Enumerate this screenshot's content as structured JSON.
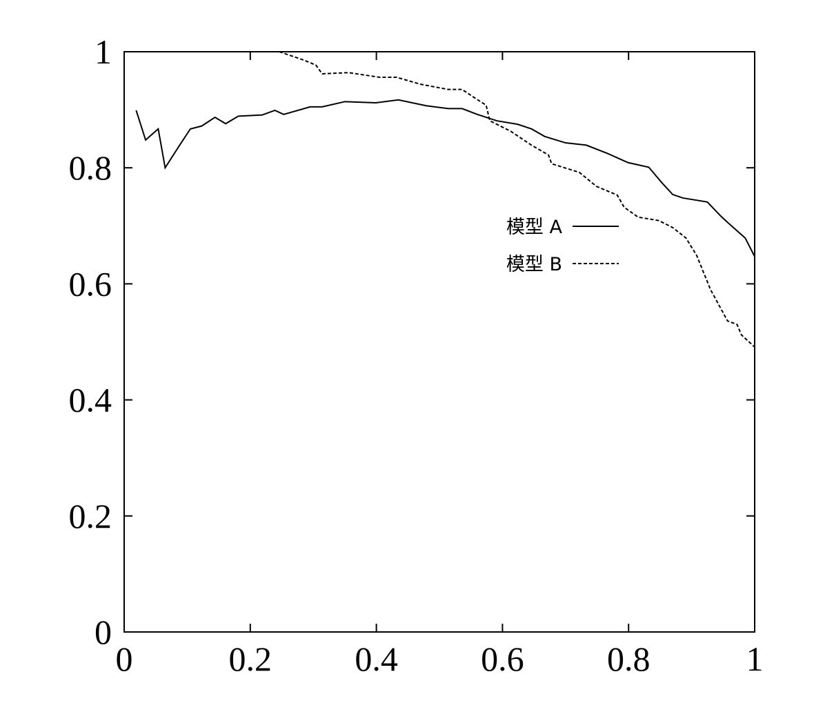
{
  "chart_data": {
    "type": "line",
    "xlim": [
      0,
      1
    ],
    "ylim": [
      0,
      1
    ],
    "xticks": [
      0,
      0.2,
      0.4,
      0.6,
      0.8,
      1
    ],
    "yticks": [
      0,
      0.2,
      0.4,
      0.6,
      0.8,
      1
    ],
    "series": [
      {
        "name": "模型 A",
        "color": "#000000",
        "line_style": "solid",
        "x": [
          0.019,
          0.034,
          0.054,
          0.065,
          0.088,
          0.105,
          0.123,
          0.144,
          0.161,
          0.181,
          0.219,
          0.239,
          0.253,
          0.295,
          0.314,
          0.35,
          0.399,
          0.435,
          0.479,
          0.514,
          0.536,
          0.56,
          0.591,
          0.624,
          0.646,
          0.667,
          0.7,
          0.733,
          0.766,
          0.799,
          0.832,
          0.853,
          0.87,
          0.886,
          0.925,
          0.946,
          0.963,
          0.985,
          1.0
        ],
        "values": [
          0.899,
          0.848,
          0.867,
          0.8,
          0.839,
          0.867,
          0.872,
          0.887,
          0.876,
          0.889,
          0.891,
          0.899,
          0.892,
          0.905,
          0.905,
          0.914,
          0.912,
          0.917,
          0.907,
          0.902,
          0.902,
          0.892,
          0.881,
          0.875,
          0.867,
          0.854,
          0.843,
          0.839,
          0.825,
          0.809,
          0.801,
          0.774,
          0.754,
          0.748,
          0.741,
          0.717,
          0.7,
          0.679,
          0.647
        ]
      },
      {
        "name": "模型 B",
        "color": "#000000",
        "line_style": "dashed",
        "x": [
          0.246,
          0.284,
          0.304,
          0.314,
          0.356,
          0.405,
          0.432,
          0.47,
          0.514,
          0.536,
          0.558,
          0.574,
          0.58,
          0.613,
          0.646,
          0.673,
          0.678,
          0.722,
          0.749,
          0.782,
          0.793,
          0.815,
          0.848,
          0.87,
          0.891,
          0.908,
          0.93,
          0.957,
          0.972,
          0.979,
          1.0
        ],
        "values": [
          1.0,
          0.986,
          0.977,
          0.962,
          0.964,
          0.956,
          0.956,
          0.944,
          0.935,
          0.935,
          0.919,
          0.908,
          0.881,
          0.863,
          0.839,
          0.822,
          0.807,
          0.792,
          0.768,
          0.753,
          0.732,
          0.715,
          0.709,
          0.697,
          0.679,
          0.649,
          0.59,
          0.536,
          0.53,
          0.512,
          0.491
        ]
      }
    ]
  }
}
